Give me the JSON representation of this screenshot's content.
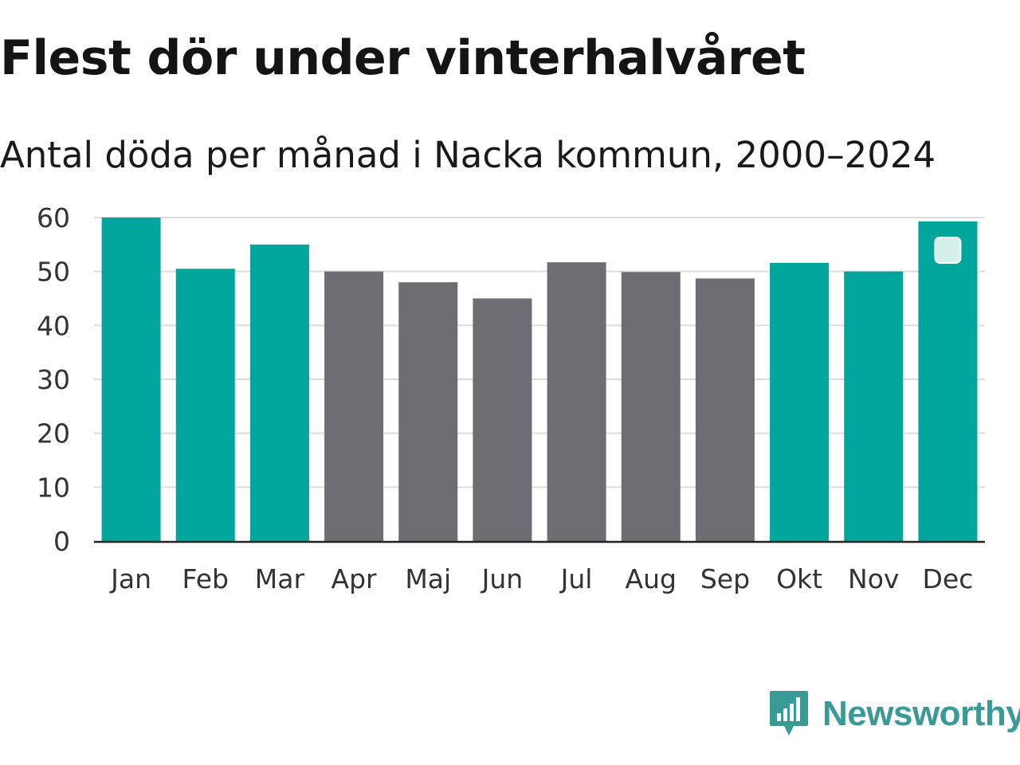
{
  "title": "Flest dör under vinterhalvåret",
  "subtitle": "Antal döda per månad i Nacka kommun, 2000–2024",
  "brand": {
    "name": "Newsworthy",
    "logo_icon": "newsworthy-logo-icon",
    "color": "#3a9a96"
  },
  "chart_data": {
    "type": "bar",
    "title": "Flest dör under vinterhalvåret",
    "subtitle": "Antal döda per månad i Nacka kommun, 2000–2024",
    "xlabel": "",
    "ylabel": "",
    "ylim": [
      0,
      60
    ],
    "yticks": [
      0,
      10,
      20,
      30,
      40,
      50,
      60
    ],
    "grid": true,
    "legend": "none",
    "categories": [
      "Jan",
      "Feb",
      "Mar",
      "Apr",
      "Maj",
      "Jun",
      "Jul",
      "Aug",
      "Sep",
      "Okt",
      "Nov",
      "Dec"
    ],
    "values": [
      60,
      50.5,
      55,
      50,
      48,
      45,
      51.7,
      49.9,
      48.7,
      51.6,
      50,
      59.3
    ],
    "winter_months": [
      true,
      true,
      true,
      false,
      false,
      false,
      false,
      false,
      false,
      true,
      true,
      true
    ],
    "colors": {
      "winter": "#00a59c",
      "summer": "#6e6d73",
      "grid": "#dddddd",
      "axis": "#222222"
    }
  }
}
